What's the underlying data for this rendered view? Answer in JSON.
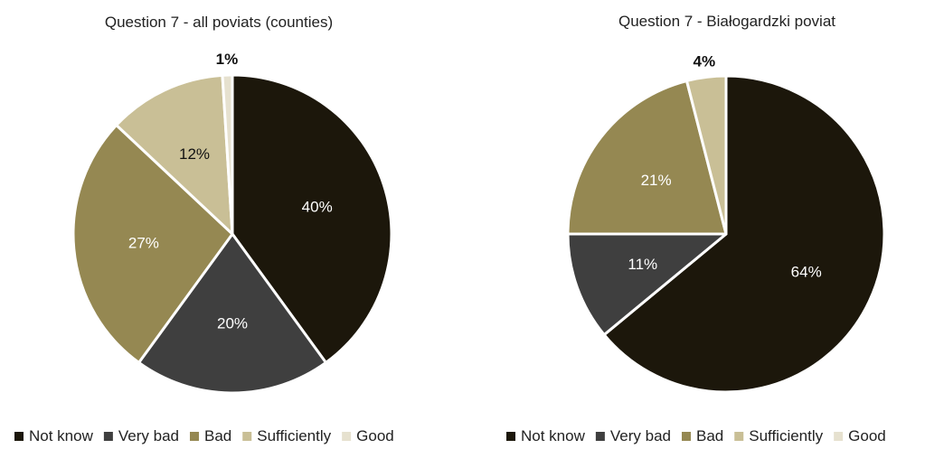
{
  "colors": {
    "Not know": "#1c170b",
    "Very bad": "#3f3f3f",
    "Bad": "#958852",
    "Sufficiently": "#c9bf96",
    "Good": "#e6e1cf"
  },
  "chart_data": [
    {
      "type": "pie",
      "title": "Question 7 - all poviats (counties)",
      "categories": [
        "Not know",
        "Very bad",
        "Bad",
        "Sufficiently",
        "Good"
      ],
      "values": [
        40,
        20,
        27,
        12,
        1
      ],
      "labels": [
        "40%",
        "20%",
        "27%",
        "12%",
        "1%"
      ],
      "start_angle_deg": 0,
      "direction": "clockwise",
      "legend": "bottom"
    },
    {
      "type": "pie",
      "title": "Question 7 - Białogardzki poviat",
      "categories": [
        "Not know",
        "Very bad",
        "Bad",
        "Sufficiently",
        "Good"
      ],
      "values": [
        64,
        11,
        21,
        4,
        0
      ],
      "labels": [
        "64%",
        "11%",
        "21%",
        "4%",
        ""
      ],
      "start_angle_deg": 0,
      "direction": "clockwise",
      "legend": "bottom"
    }
  ]
}
